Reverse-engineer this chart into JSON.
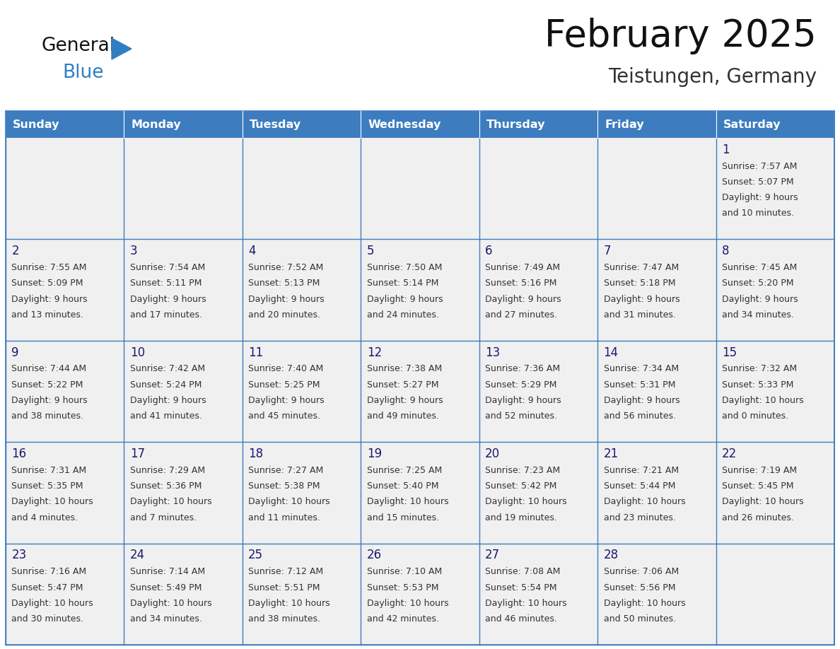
{
  "title": "February 2025",
  "subtitle": "Teistungen, Germany",
  "days_of_week": [
    "Sunday",
    "Monday",
    "Tuesday",
    "Wednesday",
    "Thursday",
    "Friday",
    "Saturday"
  ],
  "header_bg": "#3d7dbf",
  "header_text": "#ffffff",
  "cell_bg": "#f0f0f0",
  "border_color": "#3d7dbf",
  "text_color": "#333333",
  "day_number_color": "#1a1a6e",
  "calendar": [
    [
      null,
      null,
      null,
      null,
      null,
      null,
      {
        "day": 1,
        "sunrise": "7:57 AM",
        "sunset": "5:07 PM",
        "daylight": "9 hours and 10 minutes."
      }
    ],
    [
      {
        "day": 2,
        "sunrise": "7:55 AM",
        "sunset": "5:09 PM",
        "daylight": "9 hours and 13 minutes."
      },
      {
        "day": 3,
        "sunrise": "7:54 AM",
        "sunset": "5:11 PM",
        "daylight": "9 hours and 17 minutes."
      },
      {
        "day": 4,
        "sunrise": "7:52 AM",
        "sunset": "5:13 PM",
        "daylight": "9 hours and 20 minutes."
      },
      {
        "day": 5,
        "sunrise": "7:50 AM",
        "sunset": "5:14 PM",
        "daylight": "9 hours and 24 minutes."
      },
      {
        "day": 6,
        "sunrise": "7:49 AM",
        "sunset": "5:16 PM",
        "daylight": "9 hours and 27 minutes."
      },
      {
        "day": 7,
        "sunrise": "7:47 AM",
        "sunset": "5:18 PM",
        "daylight": "9 hours and 31 minutes."
      },
      {
        "day": 8,
        "sunrise": "7:45 AM",
        "sunset": "5:20 PM",
        "daylight": "9 hours and 34 minutes."
      }
    ],
    [
      {
        "day": 9,
        "sunrise": "7:44 AM",
        "sunset": "5:22 PM",
        "daylight": "9 hours and 38 minutes."
      },
      {
        "day": 10,
        "sunrise": "7:42 AM",
        "sunset": "5:24 PM",
        "daylight": "9 hours and 41 minutes."
      },
      {
        "day": 11,
        "sunrise": "7:40 AM",
        "sunset": "5:25 PM",
        "daylight": "9 hours and 45 minutes."
      },
      {
        "day": 12,
        "sunrise": "7:38 AM",
        "sunset": "5:27 PM",
        "daylight": "9 hours and 49 minutes."
      },
      {
        "day": 13,
        "sunrise": "7:36 AM",
        "sunset": "5:29 PM",
        "daylight": "9 hours and 52 minutes."
      },
      {
        "day": 14,
        "sunrise": "7:34 AM",
        "sunset": "5:31 PM",
        "daylight": "9 hours and 56 minutes."
      },
      {
        "day": 15,
        "sunrise": "7:32 AM",
        "sunset": "5:33 PM",
        "daylight": "10 hours and 0 minutes."
      }
    ],
    [
      {
        "day": 16,
        "sunrise": "7:31 AM",
        "sunset": "5:35 PM",
        "daylight": "10 hours and 4 minutes."
      },
      {
        "day": 17,
        "sunrise": "7:29 AM",
        "sunset": "5:36 PM",
        "daylight": "10 hours and 7 minutes."
      },
      {
        "day": 18,
        "sunrise": "7:27 AM",
        "sunset": "5:38 PM",
        "daylight": "10 hours and 11 minutes."
      },
      {
        "day": 19,
        "sunrise": "7:25 AM",
        "sunset": "5:40 PM",
        "daylight": "10 hours and 15 minutes."
      },
      {
        "day": 20,
        "sunrise": "7:23 AM",
        "sunset": "5:42 PM",
        "daylight": "10 hours and 19 minutes."
      },
      {
        "day": 21,
        "sunrise": "7:21 AM",
        "sunset": "5:44 PM",
        "daylight": "10 hours and 23 minutes."
      },
      {
        "day": 22,
        "sunrise": "7:19 AM",
        "sunset": "5:45 PM",
        "daylight": "10 hours and 26 minutes."
      }
    ],
    [
      {
        "day": 23,
        "sunrise": "7:16 AM",
        "sunset": "5:47 PM",
        "daylight": "10 hours and 30 minutes."
      },
      {
        "day": 24,
        "sunrise": "7:14 AM",
        "sunset": "5:49 PM",
        "daylight": "10 hours and 34 minutes."
      },
      {
        "day": 25,
        "sunrise": "7:12 AM",
        "sunset": "5:51 PM",
        "daylight": "10 hours and 38 minutes."
      },
      {
        "day": 26,
        "sunrise": "7:10 AM",
        "sunset": "5:53 PM",
        "daylight": "10 hours and 42 minutes."
      },
      {
        "day": 27,
        "sunrise": "7:08 AM",
        "sunset": "5:54 PM",
        "daylight": "10 hours and 46 minutes."
      },
      {
        "day": 28,
        "sunrise": "7:06 AM",
        "sunset": "5:56 PM",
        "daylight": "10 hours and 50 minutes."
      },
      null
    ]
  ],
  "logo_general_color": "#111111",
  "logo_blue_color": "#2e7fc2",
  "logo_triangle_color": "#2e7fc2"
}
